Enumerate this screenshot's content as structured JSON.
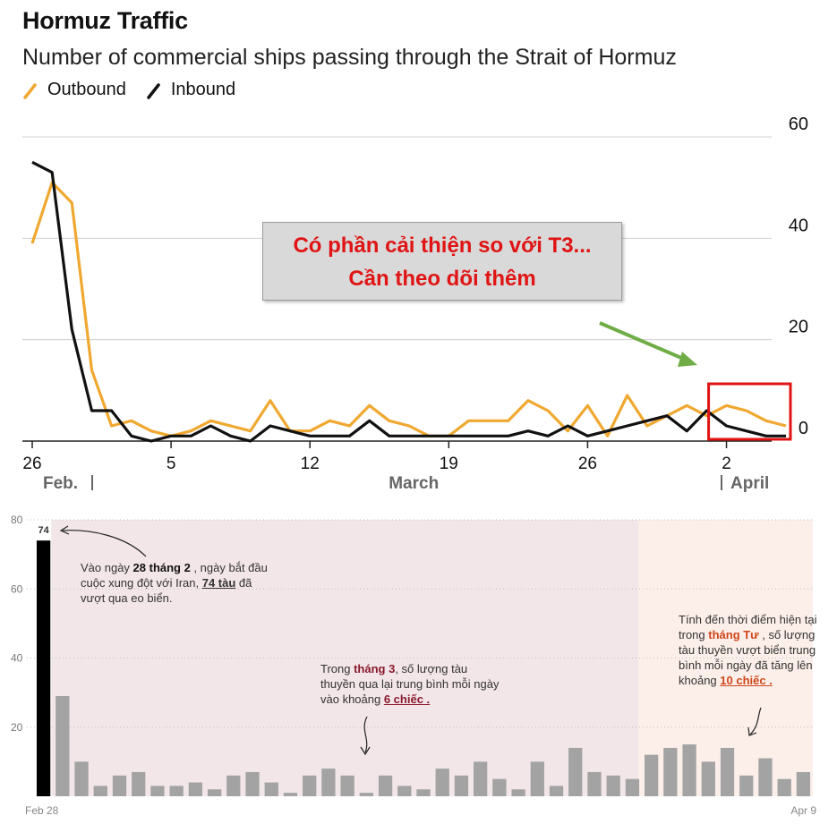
{
  "header": {
    "title": "Hormuz Traffic",
    "subtitle": "Number of commercial ships passing through the Strait of Hormuz",
    "legend": [
      {
        "label": "Outbound",
        "color": "#f0a830"
      },
      {
        "label": "Inbound",
        "color": "#111111"
      }
    ]
  },
  "callout": {
    "line1": "Có phần cải thiện so với T3...",
    "line2": "Cần theo dõi thêm",
    "arrow_color": "#70ad47",
    "box_color": "#e01414"
  },
  "chart_data": [
    {
      "type": "line",
      "title": "Hormuz Traffic",
      "subtitle": "Number of commercial ships passing through the Strait of Hormuz",
      "x_tick_labels": [
        "26",
        "5",
        "12",
        "19",
        "26",
        "2"
      ],
      "x_tick_days": [
        0,
        7,
        14,
        21,
        28,
        35
      ],
      "month_labels": [
        "Feb.",
        "March",
        "April"
      ],
      "y_ticks": [
        0,
        20,
        40,
        60
      ],
      "ylim": [
        0,
        60
      ],
      "y_axis_side": "right",
      "grid": true,
      "x_days": [
        0,
        1,
        2,
        3,
        4,
        5,
        6,
        7,
        8,
        9,
        10,
        11,
        12,
        13,
        14,
        15,
        16,
        17,
        18,
        19,
        20,
        21,
        22,
        23,
        24,
        25,
        26,
        27,
        28,
        29,
        30,
        31,
        32,
        33,
        34,
        35,
        36,
        37,
        38
      ],
      "series": [
        {
          "name": "Outbound",
          "color": "#f0a830",
          "values": [
            39,
            51,
            47,
            14,
            3,
            4,
            2,
            1,
            2,
            4,
            3,
            2,
            8,
            2,
            2,
            4,
            3,
            7,
            4,
            3,
            1,
            1,
            4,
            4,
            4,
            8,
            6,
            2,
            7,
            1,
            9,
            3,
            5,
            7,
            5,
            7,
            6,
            4,
            3
          ]
        },
        {
          "name": "Inbound",
          "color": "#111111",
          "values": [
            55,
            53,
            22,
            6,
            6,
            1,
            0,
            1,
            1,
            3,
            1,
            0,
            3,
            2,
            1,
            1,
            1,
            4,
            1,
            1,
            1,
            1,
            1,
            1,
            1,
            2,
            1,
            3,
            1,
            2,
            3,
            4,
            5,
            2,
            6,
            3,
            2,
            1,
            1
          ]
        }
      ]
    },
    {
      "type": "bar",
      "y_ticks": [
        20,
        40,
        60,
        80
      ],
      "ylim": [
        0,
        80
      ],
      "x_labels": {
        "start": "Feb 28",
        "end": "Apr 9"
      },
      "highlight_value_label": "74",
      "values": [
        74,
        29,
        10,
        3,
        6,
        7,
        3,
        3,
        4,
        2,
        6,
        7,
        4,
        1,
        6,
        8,
        6,
        1,
        6,
        3,
        2,
        8,
        6,
        10,
        5,
        2,
        10,
        3,
        14,
        7,
        6,
        5,
        12,
        14,
        15,
        10,
        14,
        6,
        11,
        5,
        7
      ],
      "region_colors": {
        "march": "#f2e6e8",
        "april": "#fcefe9"
      },
      "bar_colors": {
        "first": "#000000",
        "rest": "#a3a3a3"
      }
    }
  ],
  "annotations": {
    "feb": {
      "p1": "Vào ngày ",
      "b1": "28 tháng 2",
      "p2": " , ngày bắt đầu cuộc xung đột với Iran, ",
      "b2": "74 tàu",
      "p3": " đã vượt qua eo biển."
    },
    "march": {
      "p1": "Trong ",
      "b1": "tháng 3",
      "p2": ", số lượng tàu thuyền qua lại trung bình mỗi ngày vào khoảng ",
      "b2": "6 chiếc .",
      "p3": ""
    },
    "april": {
      "p1": "Tính đến thời điểm hiện tại trong ",
      "b1": "tháng Tư",
      "p2": " , số lượng tàu thuyền vượt biển trung bình mỗi ngày đã tăng lên khoảng ",
      "b2": "10 chiếc .",
      "p3": ""
    }
  }
}
